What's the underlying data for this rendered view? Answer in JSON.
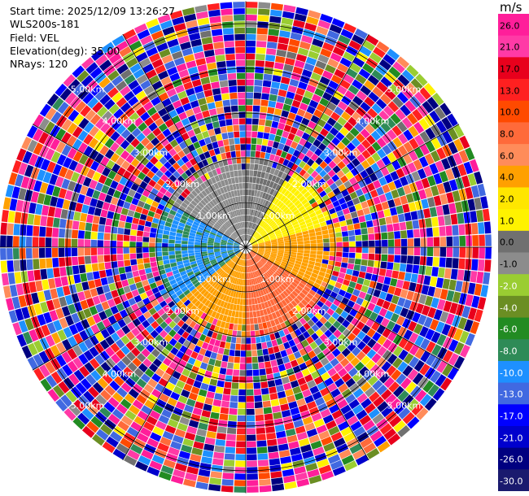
{
  "header": {
    "start_time": "Start time: 2025/12/09 13:26:27",
    "instrument": "WLS200s-181",
    "field": "Field: VEL",
    "elevation": "Elevation(deg): 35.00",
    "nrays": "NRays: 120"
  },
  "colorbar": {
    "unit": "m/s",
    "ticks": [
      "26.0",
      "21.0",
      "17.0",
      "13.0",
      "10.0",
      "8.0",
      "6.0",
      "4.0",
      "2.0",
      "1.0",
      "0.0",
      "-1.0",
      "-2.0",
      "-4.0",
      "-6.0",
      "-8.0",
      "-10.0",
      "-13.0",
      "-17.0",
      "-21.0",
      "-26.0",
      "-30.0"
    ],
    "colors": [
      "#ff1e9a",
      "#ff3aa6",
      "#e8001c",
      "#ff2020",
      "#ff4a00",
      "#ff6a3a",
      "#ff8c5a",
      "#ffa000",
      "#ffe600",
      "#fff200",
      "#707070",
      "#8c8c8c",
      "#9acd32",
      "#6b8e23",
      "#228b22",
      "#2e8b57",
      "#1e90ff",
      "#4169e1",
      "#0000ff",
      "#0000cd",
      "#000080",
      "#1a1a6e"
    ]
  },
  "chart_data": {
    "type": "heatmap",
    "projection": "polar PPI (plan position indicator)",
    "field": "VEL",
    "units": "m/s",
    "value_range": [
      -30.0,
      26.0
    ],
    "rays": 120,
    "range_ring_labels": [
      "1.00km",
      "2.00km",
      "3.00km",
      "4.00km",
      "5.00km"
    ],
    "max_range_km": 5.5,
    "pattern_summary": {
      "inner_range_km": [
        0,
        2.0
      ],
      "sectors": [
        {
          "azimuth_deg": [
            300,
            360
          ],
          "dominant_values_m_s": [
            -2,
            -1
          ],
          "color": "green"
        },
        {
          "azimuth_deg": [
            0,
            30
          ],
          "dominant_values_m_s": [
            -2,
            0
          ],
          "color": "olive"
        },
        {
          "azimuth_deg": [
            30,
            75
          ],
          "dominant_values_m_s": [
            0,
            1
          ],
          "color": "gray"
        },
        {
          "azimuth_deg": [
            75,
            120
          ],
          "dominant_values_m_s": [
            2,
            4
          ],
          "color": "yellow"
        },
        {
          "azimuth_deg": [
            120,
            180
          ],
          "dominant_values_m_s": [
            6,
            8
          ],
          "color": "salmon"
        },
        {
          "azimuth_deg": [
            180,
            230
          ],
          "dominant_values_m_s": [
            2,
            4
          ],
          "color": "yellow"
        },
        {
          "azimuth_deg": [
            230,
            300
          ],
          "dominant_values_m_s": [
            -13,
            -8
          ],
          "color": "blue"
        }
      ],
      "outer_range_km": [
        2.0,
        5.5
      ],
      "outer_description": "noisy, random values across full range -30 to 26 m/s"
    }
  }
}
